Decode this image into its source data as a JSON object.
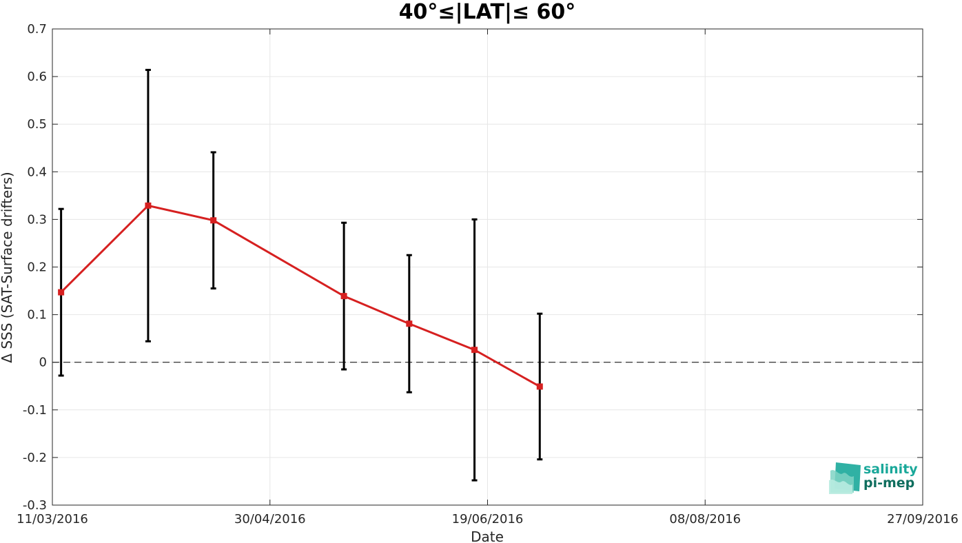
{
  "chart_data": {
    "type": "line",
    "title": "40°≤|LAT|≤ 60°",
    "xlabel": "Date",
    "ylabel": "Δ SSS (SAT-Surface drifters)",
    "x_tick_labels": [
      "11/03/2016",
      "30/04/2016",
      "19/06/2016",
      "08/08/2016",
      "27/09/2016"
    ],
    "x_ticks": [
      "2016-03-11",
      "2016-04-30",
      "2016-06-19",
      "2016-08-08",
      "2016-09-27"
    ],
    "xlim": [
      "2016-03-11",
      "2016-09-27"
    ],
    "y_tick_labels": [
      "-0.3",
      "-0.2",
      "-0.1",
      "0",
      "0.1",
      "0.2",
      "0.3",
      "0.4",
      "0.5",
      "0.6",
      "0.7"
    ],
    "ylim": [
      -0.3,
      0.7
    ],
    "grid": true,
    "reference_line": {
      "y": 0,
      "style": "dashed",
      "color": "#000000"
    },
    "series": [
      {
        "color": "#d62020",
        "marker": "square",
        "error_bar_color": "#000000",
        "points": [
          {
            "x": "2016-03-13",
            "y": 0.147,
            "lower": -0.028,
            "upper": 0.322
          },
          {
            "x": "2016-04-02",
            "y": 0.329,
            "lower": 0.044,
            "upper": 0.614
          },
          {
            "x": "2016-04-17",
            "y": 0.298,
            "lower": 0.155,
            "upper": 0.441
          },
          {
            "x": "2016-05-17",
            "y": 0.139,
            "lower": -0.015,
            "upper": 0.293
          },
          {
            "x": "2016-06-01",
            "y": 0.081,
            "lower": -0.063,
            "upper": 0.225
          },
          {
            "x": "2016-06-16",
            "y": 0.026,
            "lower": -0.248,
            "upper": 0.3
          },
          {
            "x": "2016-07-01",
            "y": -0.051,
            "lower": -0.204,
            "upper": 0.102
          }
        ]
      }
    ]
  },
  "logo": {
    "line1": "salinity",
    "line2": "pi-mep",
    "color1": "#1aa89a",
    "color2": "#0f6e5e"
  }
}
